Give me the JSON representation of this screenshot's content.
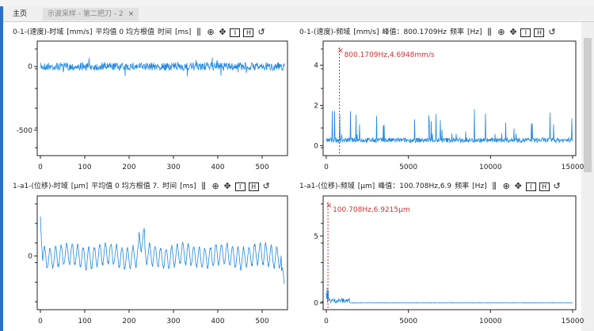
{
  "tabs": [
    {
      "label": "主页"
    },
    {
      "label": "示波采样 - 第二把刀 - 2",
      "close": "×"
    }
  ],
  "colors": {
    "signal": "#1e88e5",
    "marker": "#d32f2f",
    "accent": "#2a6fc9"
  },
  "panels": [
    {
      "title": "0-1-(速度)-时域",
      "unit": "[mm/s]",
      "info": "平均值 0 均方根值",
      "axis_label": "时间",
      "axis_unit": "[ms]"
    },
    {
      "title": "0-1-(速度)-频域",
      "unit": "[mm/s]",
      "info": "峰值：800.1709Hz",
      "axis_label": "频率",
      "axis_unit": "[Hz]"
    },
    {
      "title": "1-a1-(位移)-时域",
      "unit": "[μm]",
      "info": "平均值 0 均方根值 7.",
      "axis_label": "时间",
      "axis_unit": "[ms]"
    },
    {
      "title": "1-a1-(位移)-频域",
      "unit": "[μm]",
      "info": "峰值：100.708Hz,6.9",
      "axis_label": "频率",
      "axis_unit": "[Hz]"
    }
  ],
  "toolbar_icons": [
    "cursor-icon",
    "zoom-in-icon",
    "pan-icon",
    "y-range-icon",
    "x-range-icon",
    "reset-icon"
  ],
  "chart_data": [
    {
      "type": "line",
      "xticks": [
        "0",
        "100",
        "200",
        "300",
        "400",
        "500"
      ],
      "yticks": [
        "0",
        "-500"
      ],
      "xlim": [
        0,
        550
      ],
      "ylim": [
        -700,
        200
      ]
    },
    {
      "type": "line",
      "xticks": [
        "0",
        "5000",
        "10000",
        "15000"
      ],
      "yticks": [
        "0",
        "2",
        "4"
      ],
      "xlim": [
        0,
        15000
      ],
      "ylim": [
        -0.5,
        5.2
      ],
      "annotation": "800.1709Hz,4.6948mm/s",
      "peak_x": 800.1709,
      "peak_y": 4.6948
    },
    {
      "type": "line",
      "xticks": [
        "0",
        "100",
        "200",
        "300",
        "400",
        "500"
      ],
      "yticks": [
        "0"
      ],
      "xlim": [
        0,
        550
      ]
    },
    {
      "type": "line",
      "xticks": [
        "0",
        "5000",
        "10000",
        "15000"
      ],
      "yticks": [
        "0",
        "5"
      ],
      "xlim": [
        0,
        15000
      ],
      "ylim": [
        -0.5,
        8
      ],
      "annotation": "100.708Hz,6.9215μm",
      "peak_x": 100.708,
      "peak_y": 6.9215
    }
  ]
}
